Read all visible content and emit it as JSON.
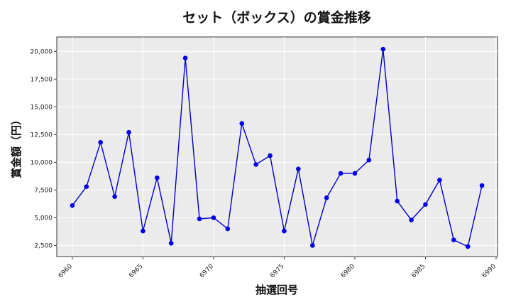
{
  "chart_data": {
    "type": "line",
    "title": "セット（ボックス）の賞金推移",
    "xlabel": "抽選回号",
    "ylabel": "賞金額（円）",
    "xlim": [
      6958.9,
      6990.1
    ],
    "ylim": [
      1500,
      21300
    ],
    "xticks": [
      6960,
      6965,
      6970,
      6975,
      6980,
      6985,
      6990
    ],
    "yticks": [
      2500,
      5000,
      7500,
      10000,
      12500,
      15000,
      17500,
      20000
    ],
    "ytick_labels": [
      "2,500",
      "5,000",
      "7,500",
      "10,000",
      "12,500",
      "15,000",
      "17,500",
      "20,000"
    ],
    "grid": true,
    "line_color": "#0000cc",
    "marker_color": "#0000ee",
    "x": [
      6960,
      6961,
      6962,
      6963,
      6964,
      6965,
      6966,
      6967,
      6968,
      6969,
      6970,
      6971,
      6972,
      6973,
      6974,
      6975,
      6976,
      6977,
      6978,
      6979,
      6980,
      6981,
      6982,
      6983,
      6984,
      6985,
      6986,
      6987,
      6988,
      6989
    ],
    "values": [
      6100,
      7800,
      11800,
      6900,
      12700,
      3800,
      8600,
      2700,
      19400,
      4900,
      5000,
      4000,
      13500,
      9800,
      10600,
      3800,
      9400,
      2500,
      6800,
      9000,
      9000,
      10200,
      20200,
      6500,
      4800,
      6200,
      8400,
      3000,
      2400,
      7900
    ]
  }
}
